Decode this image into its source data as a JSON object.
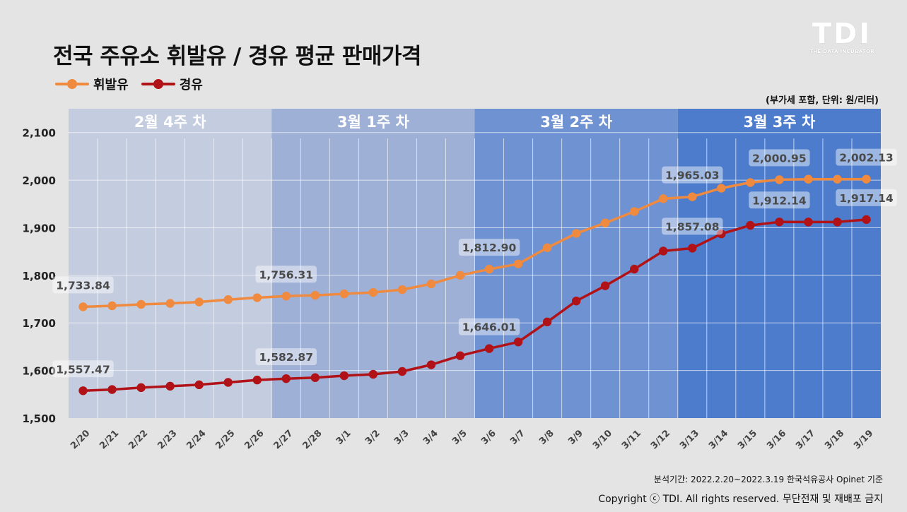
{
  "header": {
    "title": "전국 주유소 휘발유 / 경유 평균 판매가격",
    "unit_note": "(부가세 포함, 단위: 원/리터)"
  },
  "brand": {
    "logo": "TDI",
    "tagline": "THE DATA INCUBATOR"
  },
  "footer": {
    "source": "분석기간: 2022.2.20~2022.3.19   한국석유공사 Opinet 기준",
    "copyright": "Copyright ⓒ TDI. All rights reserved. 무단전재 및 재배포 금지"
  },
  "colors": {
    "gasoline": "#ef8a3e",
    "diesel": "#b01217",
    "week1": "#c4ccdf",
    "week2": "#9eb0d6",
    "week3": "#6f93d2",
    "week4": "#4c7ccb"
  },
  "chart_data": {
    "type": "line",
    "title": "전국 주유소 휘발유 / 경유 평균 판매가격",
    "ylim": [
      1500,
      2150
    ],
    "yticks": [
      1500,
      1600,
      1700,
      1800,
      1900,
      2000,
      2100
    ],
    "legend_position": "top-left",
    "grid": true,
    "categories": [
      "2/20",
      "2/21",
      "2/22",
      "2/23",
      "2/24",
      "2/25",
      "2/26",
      "2/27",
      "2/28",
      "3/1",
      "3/2",
      "3/3",
      "3/4",
      "3/5",
      "3/6",
      "3/7",
      "3/8",
      "3/9",
      "3/10",
      "3/11",
      "3/12",
      "3/13",
      "3/14",
      "3/15",
      "3/16",
      "3/17",
      "3/18",
      "3/19"
    ],
    "weeks": [
      {
        "label": "2월 4주 차",
        "start": 0,
        "end": 6
      },
      {
        "label": "3월 1주 차",
        "start": 7,
        "end": 13
      },
      {
        "label": "3월 2주 차",
        "start": 14,
        "end": 20
      },
      {
        "label": "3월 3주 차",
        "start": 21,
        "end": 27
      }
    ],
    "series": [
      {
        "name": "휘발유",
        "color": "#ef8a3e",
        "values": [
          1733.84,
          1736,
          1739,
          1741,
          1744,
          1749,
          1753,
          1756.31,
          1758,
          1761,
          1764,
          1770,
          1782,
          1800,
          1812.9,
          1824,
          1858,
          1888,
          1910,
          1934,
          1961,
          1965.03,
          1983,
          1995,
          2000.95,
          2002,
          2002,
          2002.13
        ],
        "labels": [
          {
            "index": 0,
            "text": "1,733.84"
          },
          {
            "index": 7,
            "text": "1,756.31"
          },
          {
            "index": 14,
            "text": "1,812.90"
          },
          {
            "index": 21,
            "text": "1,965.03"
          },
          {
            "index": 24,
            "text": "2,000.95"
          },
          {
            "index": 27,
            "text": "2,002.13"
          }
        ]
      },
      {
        "name": "경유",
        "color": "#b01217",
        "values": [
          1557.47,
          1560,
          1564,
          1567,
          1570,
          1575,
          1580,
          1582.87,
          1585,
          1589,
          1592,
          1598,
          1612,
          1631,
          1646.01,
          1660,
          1702,
          1746,
          1778,
          1813,
          1851,
          1857.08,
          1887,
          1905,
          1912.14,
          1912,
          1912,
          1917.14
        ],
        "labels": [
          {
            "index": 0,
            "text": "1,557.47"
          },
          {
            "index": 7,
            "text": "1,582.87"
          },
          {
            "index": 14,
            "text": "1,646.01"
          },
          {
            "index": 21,
            "text": "1,857.08"
          },
          {
            "index": 24,
            "text": "1,912.14"
          },
          {
            "index": 27,
            "text": "1,917.14"
          }
        ]
      }
    ]
  }
}
